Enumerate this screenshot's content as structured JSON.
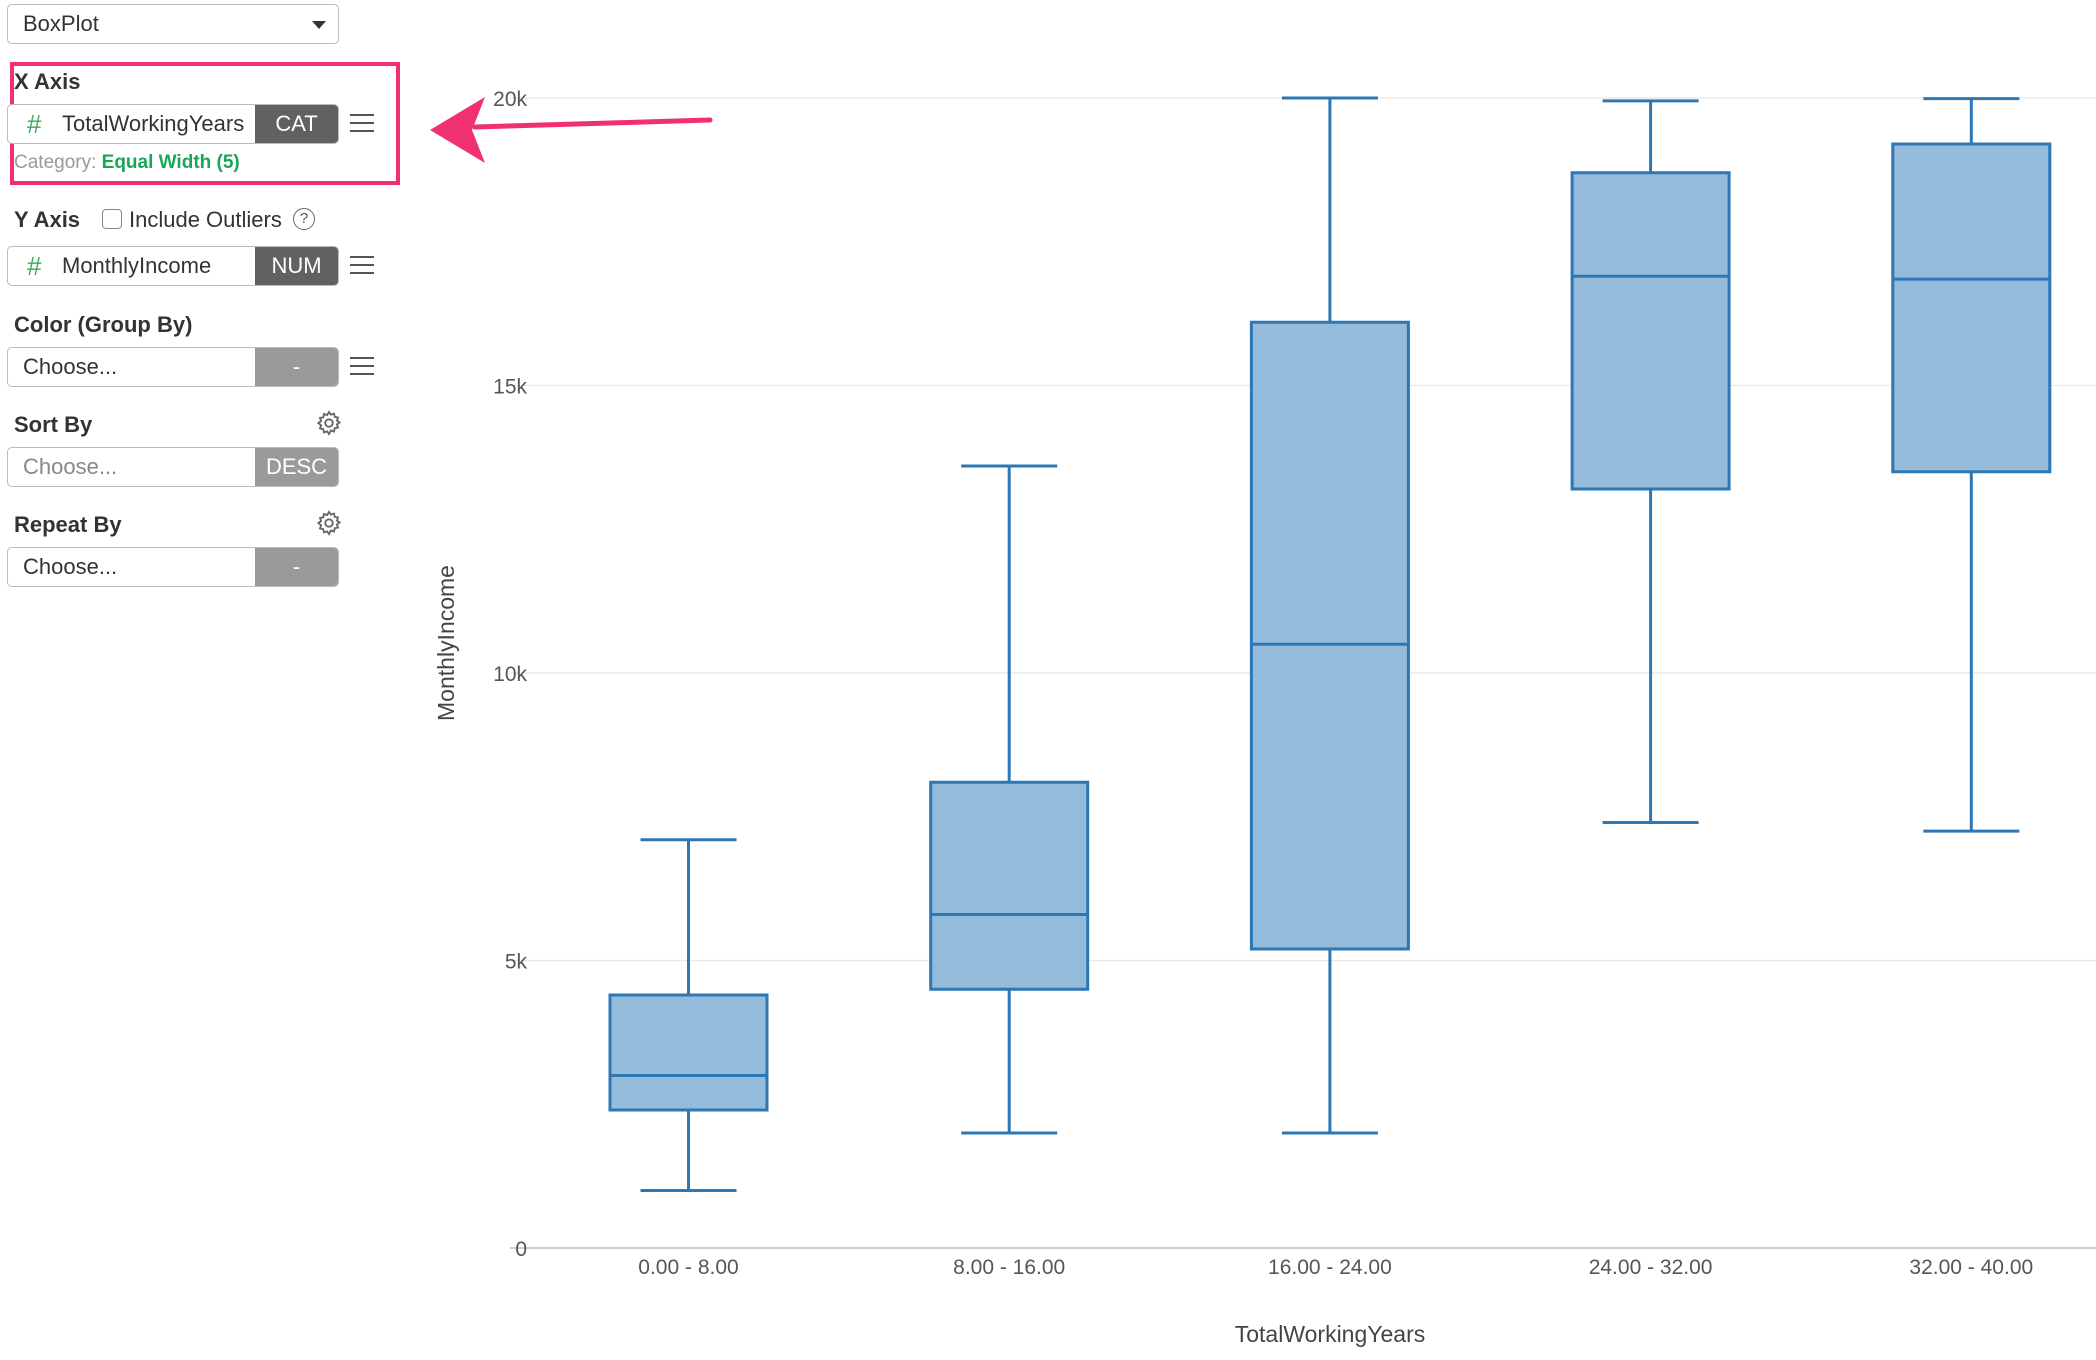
{
  "chart_type_select": {
    "value": "BoxPlot"
  },
  "x_axis": {
    "label": "X Axis",
    "field": "TotalWorkingYears",
    "field_icon": "#",
    "type_tag": "CAT",
    "category_label": "Category:",
    "category_value": "Equal Width (5)"
  },
  "y_axis": {
    "label": "Y Axis",
    "include_outliers_label": "Include Outliers",
    "include_outliers_checked": false,
    "field": "MonthlyIncome",
    "field_icon": "#",
    "type_tag": "NUM",
    "help_icon_glyph": "?"
  },
  "color_group_by": {
    "label": "Color (Group By)",
    "placeholder": "Choose...",
    "tag": "-"
  },
  "sort_by": {
    "label": "Sort By",
    "placeholder": "Choose...",
    "tag": "DESC"
  },
  "repeat_by": {
    "label": "Repeat By",
    "placeholder": "Choose...",
    "tag": "-"
  },
  "annotation_arrow_color": "#f0306f",
  "chart_data": {
    "type": "box",
    "xlabel": "TotalWorkingYears",
    "ylabel": "MonthlyIncome",
    "ylim": [
      0,
      20000
    ],
    "yticks": [
      {
        "value": 0,
        "label": "0"
      },
      {
        "value": 5000,
        "label": "5k"
      },
      {
        "value": 10000,
        "label": "10k"
      },
      {
        "value": 15000,
        "label": "15k"
      },
      {
        "value": 20000,
        "label": "20k"
      }
    ],
    "grid": true,
    "box_fill": "#94bbd9",
    "box_stroke": "#2d77b4",
    "categories": [
      "0.00 - 8.00",
      "8.00 - 16.00",
      "16.00 - 24.00",
      "24.00 - 32.00",
      "32.00 - 40.00"
    ],
    "boxes": [
      {
        "min": 1000,
        "q1": 2400,
        "median": 3000,
        "q3": 4400,
        "max": 7100
      },
      {
        "min": 2000,
        "q1": 4500,
        "median": 5800,
        "q3": 8100,
        "max": 13600
      },
      {
        "min": 2000,
        "q1": 5200,
        "median": 10500,
        "q3": 16100,
        "max": 20000
      },
      {
        "min": 7400,
        "q1": 13200,
        "median": 16900,
        "q3": 18700,
        "max": 19950
      },
      {
        "min": 7250,
        "q1": 13500,
        "median": 16850,
        "q3": 19200,
        "max": 19990
      }
    ]
  }
}
